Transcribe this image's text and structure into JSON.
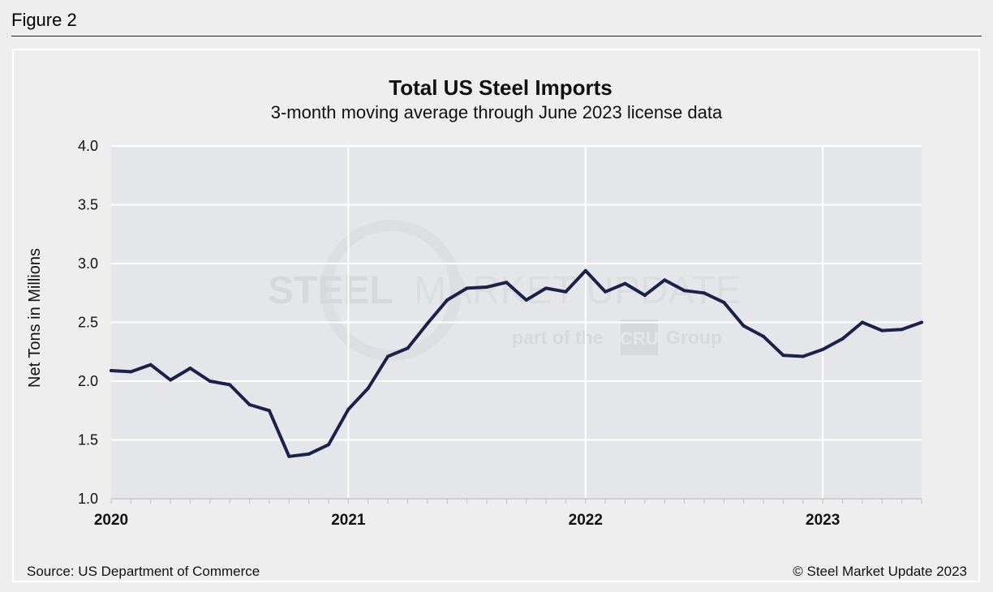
{
  "figure_label": "Figure 2",
  "watermark": {
    "line1_bold": "STEEL",
    "line1_rest": "MARKET UPDATE",
    "line2_pre": "part of the",
    "line2_logo": "CRU",
    "line2_post": "Group"
  },
  "footer": {
    "source": "Source: US Department of Commerce",
    "copyright": "© Steel Market Update 2023"
  },
  "colors": {
    "line": "#1b2149",
    "plot_bg": "#e5e6e9",
    "grid": "#ffffff"
  },
  "chart_data": {
    "type": "line",
    "title": "Total US Steel Imports",
    "subtitle": "3-month moving average through June 2023 license data",
    "ylabel": "Net Tons in Millions",
    "xlabel": "",
    "ylim": [
      1.0,
      4.0
    ],
    "yticks": [
      "1.0",
      "1.5",
      "2.0",
      "2.5",
      "3.0",
      "3.5",
      "4.0"
    ],
    "xticks": [
      {
        "label": "2020",
        "month_index": 0
      },
      {
        "label": "2021",
        "month_index": 12
      },
      {
        "label": "2022",
        "month_index": 24
      },
      {
        "label": "2023",
        "month_index": 36
      }
    ],
    "x": [
      "2020-01",
      "2020-02",
      "2020-03",
      "2020-04",
      "2020-05",
      "2020-06",
      "2020-07",
      "2020-08",
      "2020-09",
      "2020-10",
      "2020-11",
      "2020-12",
      "2021-01",
      "2021-02",
      "2021-03",
      "2021-04",
      "2021-05",
      "2021-06",
      "2021-07",
      "2021-08",
      "2021-09",
      "2021-10",
      "2021-11",
      "2021-12",
      "2022-01",
      "2022-02",
      "2022-03",
      "2022-04",
      "2022-05",
      "2022-06",
      "2022-07",
      "2022-08",
      "2022-09",
      "2022-10",
      "2022-11",
      "2022-12",
      "2023-01",
      "2023-02",
      "2023-03",
      "2023-04",
      "2023-05",
      "2023-06"
    ],
    "series": [
      {
        "name": "",
        "values": [
          2.09,
          2.08,
          2.14,
          2.01,
          2.11,
          2.0,
          1.97,
          1.8,
          1.75,
          1.36,
          1.38,
          1.46,
          1.76,
          1.94,
          2.21,
          2.28,
          2.49,
          2.69,
          2.79,
          2.8,
          2.84,
          2.69,
          2.79,
          2.76,
          2.94,
          2.76,
          2.83,
          2.73,
          2.86,
          2.77,
          2.75,
          2.67,
          2.47,
          2.38,
          2.22,
          2.21,
          2.27,
          2.36,
          2.5,
          2.43,
          2.44,
          2.5
        ]
      }
    ],
    "grid": true,
    "legend": "none"
  }
}
